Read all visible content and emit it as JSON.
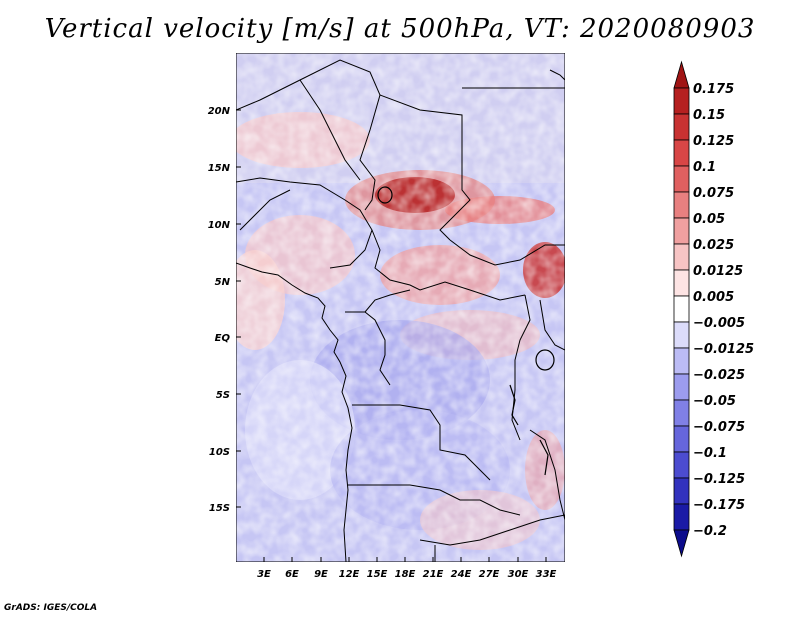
{
  "title": "Vertical velocity [m/s] at 500hPa, VT: 2020080903",
  "credit": "GrADS: IGES/COLA",
  "map": {
    "lat_ticks": [
      "20N",
      "15N",
      "10N",
      "5N",
      "EQ",
      "5S",
      "10S",
      "15S"
    ],
    "lon_ticks": [
      "3E",
      "6E",
      "9E",
      "12E",
      "15E",
      "18E",
      "21E",
      "24E",
      "27E",
      "30E",
      "33E"
    ]
  },
  "colorbar": {
    "levels": [
      "0.175",
      "0.15",
      "0.125",
      "0.1",
      "0.075",
      "0.05",
      "0.025",
      "0.0125",
      "0.005",
      "-0.005",
      "-0.0125",
      "-0.025",
      "-0.05",
      "-0.075",
      "-0.1",
      "-0.125",
      "-0.175",
      "-0.2"
    ],
    "colors": [
      "#a01414",
      "#b52020",
      "#c83232",
      "#d84646",
      "#e06060",
      "#e88080",
      "#f0a0a0",
      "#f7c4c4",
      "#fde4e4",
      "#ffffff",
      "#dcdcfa",
      "#bcbcf5",
      "#9c9cee",
      "#8080e6",
      "#6666dc",
      "#4c4cd0",
      "#3232be",
      "#1a1aa6",
      "#0c0c8c"
    ]
  },
  "colors": {
    "frame": "#000000",
    "background": "#ffffff"
  }
}
